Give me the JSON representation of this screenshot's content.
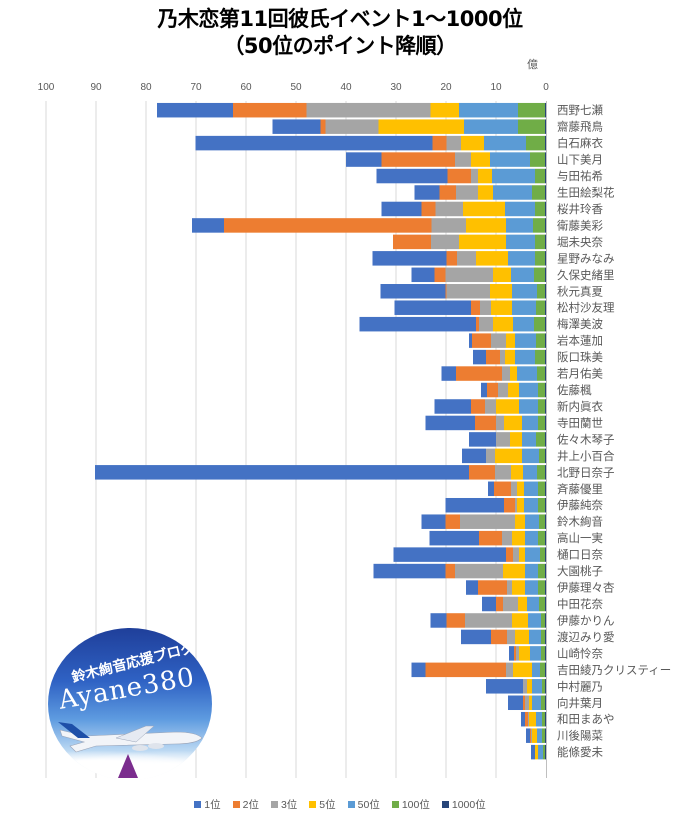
{
  "chart_data": {
    "type": "bar",
    "orientation": "horizontal-stacked-reversed",
    "title": "乃木恋第11回彼氏イベント1～1000位",
    "subtitle": "（50位のポイント降順）",
    "unit_label": "億",
    "xlabel": "",
    "ylabel": "",
    "xlim": [
      0,
      100
    ],
    "x_reversed": true,
    "x_ticks": [
      "0",
      "10",
      "20",
      "30",
      "40",
      "50",
      "60",
      "70",
      "80",
      "90",
      "100"
    ],
    "grid": true,
    "legend_position": "bottom",
    "categories": [
      "西野七瀬",
      "齋藤飛鳥",
      "白石麻衣",
      "山下美月",
      "与田祐希",
      "生田絵梨花",
      "桜井玲香",
      "衛藤美彩",
      "堀未央奈",
      "星野みなみ",
      "久保史緒里",
      "秋元真夏",
      "松村沙友理",
      "梅澤美波",
      "岩本蓮加",
      "阪口珠美",
      "若月佑美",
      "佐藤楓",
      "新内眞衣",
      "寺田蘭世",
      "佐々木琴子",
      "井上小百合",
      "北野日奈子",
      "斉藤優里",
      "伊藤純奈",
      "鈴木絢音",
      "高山一実",
      "樋口日奈",
      "大園桃子",
      "伊藤理々杏",
      "中田花奈",
      "伊藤かりん",
      "渡辺みり愛",
      "山崎怜奈",
      "吉田綾乃クリスティー",
      "中村麗乃",
      "向井葉月",
      "和田まあや",
      "川後陽菜",
      "能條愛未"
    ],
    "series": [
      {
        "name": "1000位",
        "color": "#264478",
        "values": [
          0.2,
          0.2,
          0.2,
          0.2,
          0.2,
          0.2,
          0.2,
          0.2,
          0.2,
          0.2,
          0.2,
          0.2,
          0.2,
          0.2,
          0.2,
          0.2,
          0.2,
          0.2,
          0.2,
          0.2,
          0.2,
          0.2,
          0.2,
          0.2,
          0.2,
          0.2,
          0.2,
          0.2,
          0.2,
          0.2,
          0.2,
          0.2,
          0.2,
          0.2,
          0.2,
          0.2,
          0.2,
          0.2,
          0.2,
          0.2
        ]
      },
      {
        "name": "100位",
        "color": "#70AD47",
        "values": [
          5.4,
          5.4,
          3.8,
          3.0,
          2.0,
          2.6,
          2.0,
          2.4,
          2.0,
          2.0,
          2.2,
          1.6,
          1.8,
          2.2,
          1.8,
          2.0,
          1.6,
          1.4,
          1.4,
          1.4,
          1.8,
          1.2,
          1.6,
          1.4,
          1.4,
          1.2,
          1.4,
          1.0,
          1.4,
          1.4,
          1.2,
          0.8,
          0.8,
          0.8,
          1.0,
          0.6,
          0.8,
          0.6,
          0.6,
          0.4
        ]
      },
      {
        "name": "50位",
        "color": "#5B9BD5",
        "values": [
          11.8,
          10.8,
          8.4,
          8.0,
          8.6,
          7.8,
          6.0,
          5.4,
          5.8,
          5.4,
          4.6,
          5.0,
          4.8,
          4.2,
          4.2,
          4.0,
          4.0,
          3.8,
          3.8,
          3.2,
          2.8,
          3.4,
          2.8,
          2.8,
          2.8,
          2.8,
          2.6,
          3.0,
          2.6,
          2.6,
          2.4,
          2.6,
          2.4,
          2.2,
          1.6,
          2.0,
          1.8,
          1.2,
          1.0,
          1.0
        ]
      },
      {
        "name": "5位",
        "color": "#FFC000",
        "values": [
          5.7,
          17.1,
          4.6,
          3.8,
          2.8,
          3.0,
          8.4,
          8.0,
          9.4,
          6.4,
          3.6,
          4.4,
          4.2,
          4.0,
          1.8,
          2.0,
          1.4,
          2.2,
          4.6,
          3.6,
          2.4,
          5.4,
          2.4,
          1.4,
          1.4,
          2.0,
          2.6,
          1.2,
          4.4,
          2.6,
          1.8,
          3.2,
          2.8,
          2.2,
          3.8,
          1.0,
          0.6,
          1.4,
          1.0,
          0.6
        ]
      },
      {
        "name": "3位",
        "color": "#A5A5A5",
        "values": [
          24.8,
          10.6,
          2.9,
          3.2,
          1.4,
          4.4,
          5.5,
          6.9,
          5.6,
          3.8,
          9.5,
          8.7,
          2.2,
          2.8,
          3.0,
          1.0,
          1.6,
          2.0,
          2.2,
          1.6,
          2.8,
          1.8,
          3.2,
          1.2,
          0.4,
          11.0,
          2.0,
          1.2,
          9.6,
          1.0,
          3.0,
          9.4,
          1.6,
          0.6,
          1.4,
          0.8,
          0.8,
          0.2,
          0.2,
          0
        ]
      },
      {
        "name": "2位",
        "color": "#ED7D31",
        "values": [
          14.7,
          1.0,
          2.8,
          14.7,
          4.7,
          3.3,
          2.8,
          41.5,
          7.6,
          2.1,
          2.2,
          0.2,
          1.8,
          0.6,
          3.8,
          2.8,
          9.2,
          2.2,
          2.8,
          4.2,
          0,
          0,
          5.2,
          3.4,
          2.2,
          2.9,
          4.6,
          1.4,
          1.9,
          5.8,
          1.4,
          3.7,
          3.2,
          0.4,
          16.1,
          0,
          0.4,
          0.6,
          0.2,
          0
        ]
      },
      {
        "name": "1位",
        "color": "#4472C4",
        "values": [
          15.2,
          9.6,
          47.4,
          7.1,
          14.2,
          5.0,
          8.0,
          6.4,
          0,
          14.8,
          4.6,
          13.0,
          15.3,
          23.3,
          0.6,
          2.6,
          2.9,
          1.2,
          7.3,
          9.9,
          5.4,
          4.8,
          74.8,
          1.2,
          11.7,
          4.8,
          9.9,
          22.5,
          14.4,
          2.4,
          2.8,
          3.2,
          6.0,
          1.0,
          2.8,
          7.4,
          3.0,
          0.8,
          0.8,
          0.8
        ]
      }
    ],
    "legend": [
      "1位",
      "2位",
      "3位",
      "5位",
      "50位",
      "100位",
      "1000位"
    ]
  },
  "colors": {
    "1位": "#4472C4",
    "2位": "#ED7D31",
    "3位": "#A5A5A5",
    "5位": "#FFC000",
    "50位": "#5B9BD5",
    "100位": "#70AD47",
    "1000位": "#264478"
  },
  "logo": {
    "line1": "鈴木絢音応援ブログ",
    "line2": "Ayane380"
  }
}
